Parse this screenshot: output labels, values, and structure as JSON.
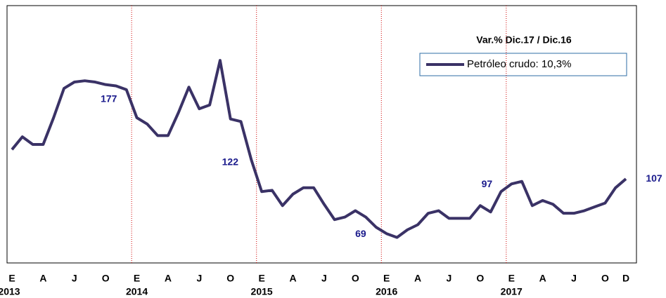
{
  "chart_data": {
    "type": "line",
    "categories": [
      "E",
      null,
      null,
      "A",
      null,
      null,
      "J",
      null,
      null,
      "O",
      null,
      null,
      "E",
      null,
      null,
      "A",
      null,
      null,
      "J",
      null,
      null,
      "O",
      null,
      null,
      "E",
      null,
      null,
      "A",
      null,
      null,
      "J",
      null,
      null,
      "O",
      null,
      null,
      "E",
      null,
      null,
      "A",
      null,
      null,
      "J",
      null,
      null,
      "O",
      null,
      null,
      "E",
      null,
      null,
      "A",
      null,
      null,
      "J",
      null,
      null,
      "O",
      null,
      "D"
    ],
    "years": [
      "2013",
      "2014",
      "2015",
      "2016",
      "2017"
    ],
    "legend_title": "Var.% Dic.17 / Dic.16",
    "series": [
      {
        "name": "Petróleo crudo: 10,3%",
        "color": "#3a3266",
        "values": [
          130,
          140,
          134,
          134,
          155,
          178,
          183,
          184,
          183,
          181,
          180,
          177,
          155,
          150,
          141,
          141,
          159,
          179,
          162,
          165,
          200,
          154,
          152,
          122,
          97,
          98,
          86,
          95,
          100,
          100,
          87,
          75,
          77,
          82,
          77,
          69,
          64,
          61,
          67,
          71,
          80,
          82,
          76,
          76,
          76,
          86,
          81,
          97,
          103,
          105,
          86,
          90,
          87,
          80,
          80,
          82,
          85,
          88,
          100,
          107
        ],
        "value_labels": [
          null,
          null,
          null,
          null,
          null,
          null,
          null,
          null,
          null,
          null,
          null,
          "177",
          null,
          null,
          null,
          null,
          null,
          null,
          null,
          null,
          null,
          null,
          null,
          "122",
          null,
          null,
          null,
          null,
          null,
          null,
          null,
          null,
          null,
          null,
          null,
          "69",
          null,
          null,
          null,
          null,
          null,
          null,
          null,
          null,
          null,
          null,
          null,
          "97",
          null,
          null,
          null,
          null,
          null,
          null,
          null,
          null,
          null,
          null,
          null,
          "107"
        ]
      }
    ],
    "ylim": [
      41,
      243
    ],
    "grid": false,
    "legend": "upper right"
  }
}
